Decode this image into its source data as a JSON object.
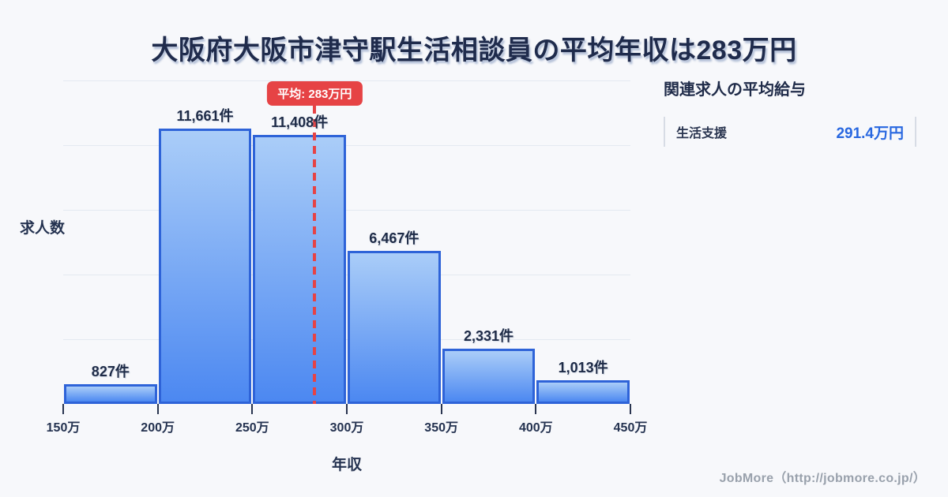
{
  "title": "大阪府大阪市津守駅生活相談員の平均年収は283万円",
  "chart_data": {
    "type": "bar",
    "subtype": "histogram",
    "title": "大阪府大阪市津守駅生活相談員の平均年収は283万円",
    "categories": [
      "150万-200万",
      "200万-250万",
      "250万-300万",
      "300万-350万",
      "350万-400万",
      "400万-450万"
    ],
    "values": [
      827,
      11661,
      11408,
      6467,
      2331,
      1013
    ],
    "bar_labels": [
      "827件",
      "11,661件",
      "11,408件",
      "6,467件",
      "2,331件",
      "1,013件"
    ],
    "x_tick_labels": [
      "150万",
      "200万",
      "250万",
      "300万",
      "350万",
      "400万",
      "450万"
    ],
    "x_range": [
      150,
      450
    ],
    "ylim": [
      0,
      13700
    ],
    "xlabel": "年収",
    "ylabel": "求人数",
    "grid": true,
    "legend": false,
    "mean_line": {
      "value": 283,
      "label": "平均: 283万円"
    },
    "colors": {
      "bar_top": "#aacdf8",
      "bar_bottom": "#4c88f1",
      "bar_border": "#2e63d8",
      "mean_red": "#e64345",
      "grid": "#e4e9f1"
    }
  },
  "side_panel": {
    "heading": "関連求人の平均給与",
    "rows": [
      {
        "label": "生活支援",
        "value": "291.4万円"
      }
    ],
    "value_color": "#2867e0"
  },
  "footer": {
    "credit": "JobMore（http://jobmore.co.jp/）"
  }
}
